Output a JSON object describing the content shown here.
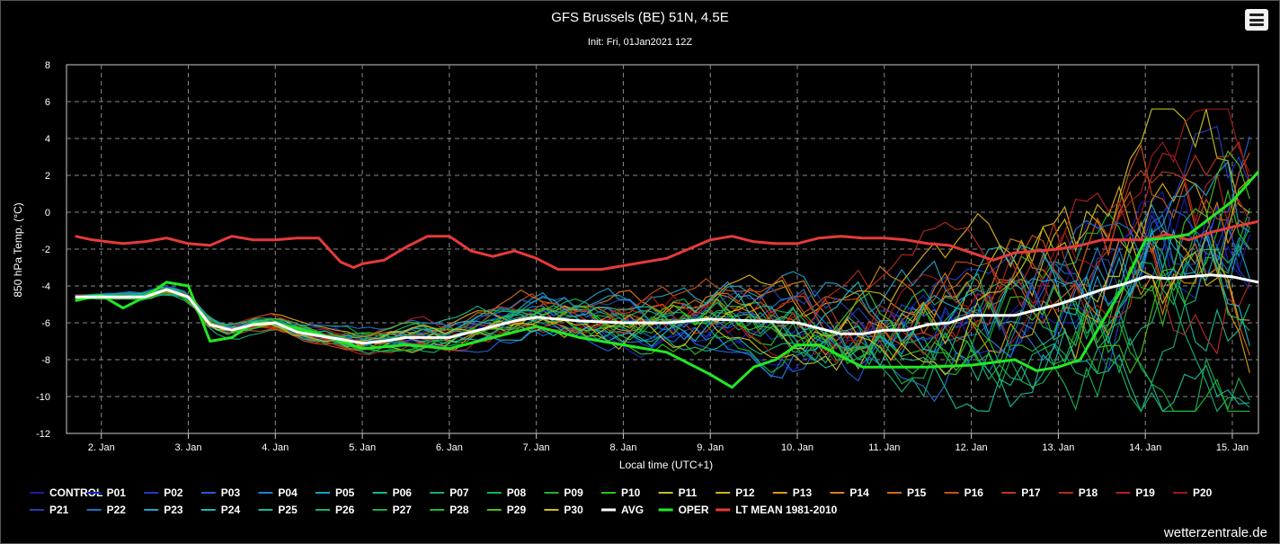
{
  "chart_data": {
    "type": "line",
    "title": "GFS Brussels (BE) 51N, 4.5E",
    "subtitle": "Init: Fri, 01Jan2021 12Z",
    "xlabel": "Local time (UTC+1)",
    "ylabel": "850 hPa Temp. (°C)",
    "ylim": [
      -12,
      8
    ],
    "yticks": [
      "8",
      "6",
      "4",
      "2",
      "0",
      "-2",
      "-4",
      "-6",
      "-8",
      "-10",
      "-12"
    ],
    "xlim": [
      1.6,
      15.3
    ],
    "xticks": [
      {
        "x": 2,
        "label": "2. Jan"
      },
      {
        "x": 3,
        "label": "3. Jan"
      },
      {
        "x": 4,
        "label": "4. Jan"
      },
      {
        "x": 5,
        "label": "5. Jan"
      },
      {
        "x": 6,
        "label": "6. Jan"
      },
      {
        "x": 7,
        "label": "7. Jan"
      },
      {
        "x": 8,
        "label": "8. Jan"
      },
      {
        "x": 9,
        "label": "9. Jan"
      },
      {
        "x": 10,
        "label": "10. Jan"
      },
      {
        "x": 11,
        "label": "11. Jan"
      },
      {
        "x": 12,
        "label": "12. Jan"
      },
      {
        "x": 13,
        "label": "13. Jan"
      },
      {
        "x": 14,
        "label": "14. Jan"
      },
      {
        "x": 15,
        "label": "15. Jan"
      }
    ],
    "grid": true,
    "legend_position": "bottom",
    "time_step_days": 0.125,
    "members": [
      {
        "name": "CONTROL",
        "color": "#1a1aa8"
      },
      {
        "name": "P01",
        "color": "#1a24b8"
      },
      {
        "name": "P02",
        "color": "#1f3ec4"
      },
      {
        "name": "P03",
        "color": "#2060d0"
      },
      {
        "name": "P04",
        "color": "#1f80d8"
      },
      {
        "name": "P05",
        "color": "#1aa0c8"
      },
      {
        "name": "P06",
        "color": "#16b890"
      },
      {
        "name": "P07",
        "color": "#14b070"
      },
      {
        "name": "P08",
        "color": "#12b850"
      },
      {
        "name": "P09",
        "color": "#18b830"
      },
      {
        "name": "P10",
        "color": "#30c020"
      },
      {
        "name": "P11",
        "color": "#c8c020"
      },
      {
        "name": "P12",
        "color": "#d8b018"
      },
      {
        "name": "P13",
        "color": "#d89a18"
      },
      {
        "name": "P14",
        "color": "#d88018"
      },
      {
        "name": "P15",
        "color": "#d06818"
      },
      {
        "name": "P16",
        "color": "#c85018"
      },
      {
        "name": "P17",
        "color": "#c03818"
      },
      {
        "name": "P18",
        "color": "#b82a20"
      },
      {
        "name": "P19",
        "color": "#b02028"
      },
      {
        "name": "P20",
        "color": "#a01818"
      },
      {
        "name": "P21",
        "color": "#2040b0"
      },
      {
        "name": "P22",
        "color": "#2070c8"
      },
      {
        "name": "P23",
        "color": "#20a0d0"
      },
      {
        "name": "P24",
        "color": "#18b8c0"
      },
      {
        "name": "P25",
        "color": "#18b898"
      },
      {
        "name": "P26",
        "color": "#18b070"
      },
      {
        "name": "P27",
        "color": "#18b050"
      },
      {
        "name": "P28",
        "color": "#20b830"
      },
      {
        "name": "P29",
        "color": "#48c018"
      },
      {
        "name": "P30",
        "color": "#d0c018"
      }
    ],
    "series": [
      {
        "name": "AVG",
        "color": "#ffffff",
        "width": 3,
        "x": [
          1.7,
          2.0,
          2.5,
          2.75,
          3.0,
          3.25,
          3.5,
          3.75,
          4.0,
          4.25,
          4.5,
          4.75,
          5.0,
          5.25,
          5.5,
          5.75,
          6.0,
          6.25,
          6.5,
          6.75,
          7.0,
          7.5,
          8.0,
          8.5,
          9.0,
          9.5,
          10.0,
          10.25,
          10.5,
          10.75,
          11.0,
          11.25,
          11.5,
          11.75,
          12.0,
          12.25,
          12.5,
          12.75,
          13.0,
          13.25,
          13.5,
          13.75,
          14.0,
          14.25,
          14.5,
          14.75,
          15.0,
          15.3
        ],
        "y": [
          -4.6,
          -4.6,
          -4.6,
          -4.2,
          -4.6,
          -6.1,
          -6.4,
          -6.1,
          -6.0,
          -6.5,
          -6.7,
          -6.9,
          -7.1,
          -7.0,
          -6.8,
          -6.8,
          -6.8,
          -6.5,
          -6.2,
          -5.9,
          -5.7,
          -5.9,
          -6.0,
          -6.0,
          -5.8,
          -5.9,
          -6.0,
          -6.3,
          -6.6,
          -6.6,
          -6.4,
          -6.4,
          -6.1,
          -6.0,
          -5.6,
          -5.6,
          -5.6,
          -5.3,
          -5.0,
          -4.6,
          -4.2,
          -3.9,
          -3.5,
          -3.6,
          -3.5,
          -3.4,
          -3.5,
          -3.8
        ]
      },
      {
        "name": "OPER",
        "color": "#22e822",
        "width": 3,
        "x": [
          1.7,
          2.0,
          2.25,
          2.5,
          2.75,
          3.0,
          3.25,
          3.5,
          3.75,
          4.0,
          4.5,
          5.0,
          5.5,
          6.0,
          6.5,
          7.0,
          7.5,
          8.0,
          8.5,
          9.0,
          9.25,
          9.5,
          9.75,
          10.0,
          10.25,
          10.5,
          10.75,
          11.0,
          11.5,
          12.0,
          12.5,
          12.75,
          13.0,
          13.25,
          13.5,
          13.75,
          14.0,
          14.25,
          14.5,
          14.75,
          15.0,
          15.3
        ],
        "y": [
          -4.8,
          -4.5,
          -5.2,
          -4.6,
          -3.8,
          -4.0,
          -7.0,
          -6.8,
          -6.0,
          -6.0,
          -6.6,
          -7.4,
          -7.2,
          -7.4,
          -6.8,
          -6.2,
          -6.8,
          -7.2,
          -7.6,
          -8.8,
          -9.5,
          -8.4,
          -8.0,
          -7.2,
          -7.2,
          -7.8,
          -8.4,
          -8.4,
          -8.4,
          -8.3,
          -8.0,
          -8.6,
          -8.4,
          -8.0,
          -6.0,
          -4.0,
          -1.5,
          -1.4,
          -1.2,
          -0.3,
          0.6,
          2.2
        ]
      },
      {
        "name": "LT MEAN 1981-2010",
        "color": "#e83a3a",
        "width": 3,
        "x": [
          1.7,
          1.9,
          2.25,
          2.5,
          2.75,
          3.0,
          3.25,
          3.5,
          3.75,
          4.0,
          4.25,
          4.5,
          4.75,
          4.9,
          5.0,
          5.25,
          5.5,
          5.75,
          6.0,
          6.25,
          6.5,
          6.75,
          7.0,
          7.25,
          7.5,
          7.75,
          8.0,
          8.25,
          8.5,
          8.75,
          9.0,
          9.25,
          9.5,
          9.75,
          10.0,
          10.25,
          10.5,
          10.75,
          11.0,
          11.25,
          11.5,
          11.75,
          12.0,
          12.25,
          12.5,
          12.75,
          13.0,
          13.25,
          13.5,
          13.75,
          14.0,
          14.25,
          14.5,
          14.75,
          15.0,
          15.3
        ],
        "y": [
          -1.3,
          -1.5,
          -1.7,
          -1.6,
          -1.4,
          -1.7,
          -1.8,
          -1.3,
          -1.5,
          -1.5,
          -1.4,
          -1.4,
          -2.7,
          -3.0,
          -2.8,
          -2.6,
          -1.9,
          -1.3,
          -1.3,
          -2.1,
          -2.4,
          -2.1,
          -2.5,
          -3.1,
          -3.1,
          -3.1,
          -2.9,
          -2.7,
          -2.5,
          -2.0,
          -1.5,
          -1.3,
          -1.6,
          -1.7,
          -1.7,
          -1.4,
          -1.3,
          -1.4,
          -1.4,
          -1.5,
          -1.7,
          -1.8,
          -2.2,
          -2.6,
          -2.2,
          -2.1,
          -2.0,
          -1.8,
          -1.5,
          -1.5,
          -1.5,
          -1.2,
          -1.5,
          -1.1,
          -0.8,
          -0.5
        ]
      }
    ]
  },
  "credit": "wetterzentrale.de",
  "menu": {
    "icon": "hamburger-menu-icon"
  }
}
